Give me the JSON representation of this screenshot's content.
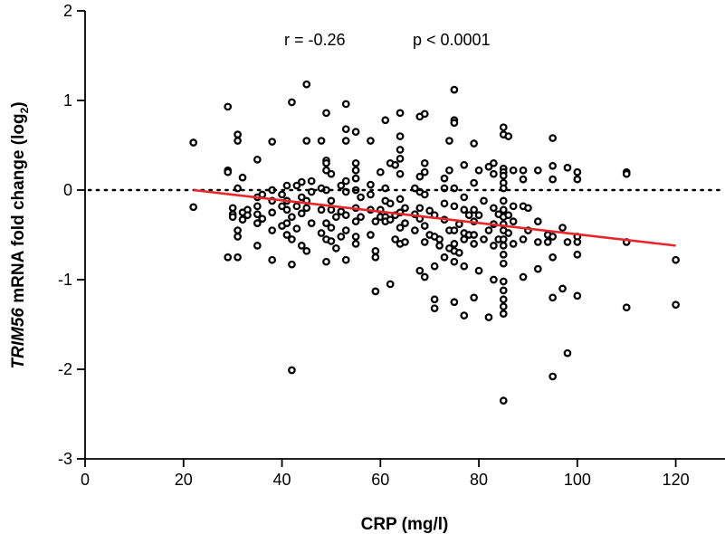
{
  "chart_data": {
    "type": "scatter",
    "title": "",
    "xlabel": "CRP (mg/l)",
    "ylabel_italic": "TRIM56",
    "ylabel_rest": " mRNA fold change (log",
    "ylabel_sub": "2",
    "ylabel_close": ")",
    "xlim": [
      0,
      130
    ],
    "ylim": [
      -3,
      2
    ],
    "xticks": [
      0,
      20,
      40,
      60,
      80,
      100,
      120
    ],
    "yticks": [
      -3,
      -2,
      -1,
      0,
      1,
      2
    ],
    "annotations": {
      "r": "r = -0.26",
      "p": "p < 0.0001"
    },
    "reference_line": {
      "y": 0,
      "style": "dotted"
    },
    "regression": {
      "x": [
        22,
        120
      ],
      "y": [
        0.0,
        -0.62
      ],
      "color": "#e8262a"
    },
    "points": [
      [
        22,
        0.53
      ],
      [
        22,
        -0.19
      ],
      [
        29,
        0.93
      ],
      [
        29,
        0.22
      ],
      [
        29,
        0.2
      ],
      [
        29,
        -0.75
      ],
      [
        30,
        -0.2
      ],
      [
        30,
        -0.27
      ],
      [
        30,
        -0.3
      ],
      [
        31,
        0.62
      ],
      [
        31,
        0.55
      ],
      [
        31,
        0.02
      ],
      [
        31,
        -0.45
      ],
      [
        31,
        -0.52
      ],
      [
        31,
        -0.75
      ],
      [
        32,
        0.14
      ],
      [
        32,
        -0.25
      ],
      [
        32,
        -0.33
      ],
      [
        33,
        -0.22
      ],
      [
        33,
        -0.28
      ],
      [
        35,
        0.34
      ],
      [
        35,
        -0.08
      ],
      [
        35,
        -0.18
      ],
      [
        35,
        -0.27
      ],
      [
        35,
        -0.37
      ],
      [
        35,
        -0.62
      ],
      [
        36,
        -0.05
      ],
      [
        36,
        -0.32
      ],
      [
        38,
        0.54
      ],
      [
        38,
        0.0
      ],
      [
        38,
        -0.12
      ],
      [
        38,
        -0.25
      ],
      [
        38,
        -0.45
      ],
      [
        38,
        -0.78
      ],
      [
        40,
        -0.05
      ],
      [
        40,
        -0.18
      ],
      [
        40,
        -0.4
      ],
      [
        41,
        0.05
      ],
      [
        41,
        -0.12
      ],
      [
        41,
        -0.22
      ],
      [
        41,
        -0.37
      ],
      [
        41,
        -0.5
      ],
      [
        42,
        0.98
      ],
      [
        42,
        -0.3
      ],
      [
        42,
        -0.55
      ],
      [
        42,
        -2.01
      ],
      [
        42,
        -0.83
      ],
      [
        43,
        0.05
      ],
      [
        43,
        -0.18
      ],
      [
        43,
        -0.43
      ],
      [
        44,
        0.09
      ],
      [
        44,
        -0.08
      ],
      [
        44,
        -0.26
      ],
      [
        44,
        -0.62
      ],
      [
        45,
        1.18
      ],
      [
        45,
        0.55
      ],
      [
        45,
        -0.12
      ],
      [
        45,
        -0.2
      ],
      [
        45,
        -0.68
      ],
      [
        46,
        0.1
      ],
      [
        46,
        -0.02
      ],
      [
        46,
        -0.37
      ],
      [
        48,
        0.55
      ],
      [
        48,
        0.02
      ],
      [
        48,
        -0.22
      ],
      [
        48,
        -0.48
      ],
      [
        49,
        0.86
      ],
      [
        49,
        0.33
      ],
      [
        49,
        0.3
      ],
      [
        49,
        0.22
      ],
      [
        49,
        0.0
      ],
      [
        49,
        -0.37
      ],
      [
        49,
        -0.55
      ],
      [
        49,
        -0.8
      ],
      [
        50,
        0.18
      ],
      [
        50,
        -0.12
      ],
      [
        50,
        -0.22
      ],
      [
        50,
        -0.42
      ],
      [
        50,
        -0.57
      ],
      [
        51,
        -0.3
      ],
      [
        51,
        -0.65
      ],
      [
        52,
        0.05
      ],
      [
        52,
        -0.24
      ],
      [
        52,
        -0.52
      ],
      [
        53,
        0.96
      ],
      [
        53,
        0.68
      ],
      [
        53,
        0.55
      ],
      [
        53,
        0.1
      ],
      [
        53,
        -0.02
      ],
      [
        53,
        -0.28
      ],
      [
        53,
        -0.45
      ],
      [
        53,
        -0.78
      ],
      [
        55,
        0.65
      ],
      [
        55,
        0.3
      ],
      [
        55,
        0.22
      ],
      [
        55,
        0.13
      ],
      [
        55,
        0.0
      ],
      [
        55,
        -0.2
      ],
      [
        55,
        -0.35
      ],
      [
        55,
        -0.52
      ],
      [
        55,
        -0.6
      ],
      [
        56,
        -0.08
      ],
      [
        56,
        -0.3
      ],
      [
        58,
        0.55
      ],
      [
        58,
        0.06
      ],
      [
        58,
        -0.05
      ],
      [
        58,
        -0.22
      ],
      [
        58,
        -0.5
      ],
      [
        59,
        -0.35
      ],
      [
        59,
        -0.68
      ],
      [
        59,
        -0.75
      ],
      [
        59,
        -1.13
      ],
      [
        60,
        0.2
      ],
      [
        60,
        -0.22
      ],
      [
        60,
        -0.3
      ],
      [
        61,
        0.78
      ],
      [
        61,
        0.02
      ],
      [
        61,
        -0.12
      ],
      [
        61,
        -0.3
      ],
      [
        61,
        -0.35
      ],
      [
        62,
        0.3
      ],
      [
        62,
        -0.15
      ],
      [
        62,
        -0.33
      ],
      [
        62,
        -1.05
      ],
      [
        63,
        0.28
      ],
      [
        63,
        -0.28
      ],
      [
        63,
        -0.55
      ],
      [
        64,
        0.86
      ],
      [
        64,
        0.6
      ],
      [
        64,
        0.45
      ],
      [
        64,
        0.35
      ],
      [
        64,
        0.18
      ],
      [
        64,
        -0.1
      ],
      [
        64,
        -0.25
      ],
      [
        64,
        -0.42
      ],
      [
        64,
        -0.6
      ],
      [
        65,
        -0.2
      ],
      [
        65,
        -0.37
      ],
      [
        65,
        -0.58
      ],
      [
        67,
        0.02
      ],
      [
        67,
        -0.27
      ],
      [
        67,
        -0.45
      ],
      [
        68,
        0.82
      ],
      [
        68,
        0.15
      ],
      [
        68,
        -0.02
      ],
      [
        68,
        -0.2
      ],
      [
        68,
        -0.32
      ],
      [
        68,
        -0.9
      ],
      [
        69,
        0.85
      ],
      [
        69,
        0.3
      ],
      [
        69,
        0.2
      ],
      [
        69,
        -0.05
      ],
      [
        69,
        -0.4
      ],
      [
        69,
        -0.58
      ],
      [
        69,
        -0.97
      ],
      [
        70,
        -0.23
      ],
      [
        70,
        -0.5
      ],
      [
        71,
        -0.28
      ],
      [
        71,
        -0.52
      ],
      [
        71,
        -0.85
      ],
      [
        71,
        -1.22
      ],
      [
        71,
        -1.32
      ],
      [
        72,
        -0.55
      ],
      [
        72,
        -0.62
      ],
      [
        73,
        0.13
      ],
      [
        73,
        0.02
      ],
      [
        73,
        -0.15
      ],
      [
        73,
        -0.33
      ],
      [
        73,
        -0.75
      ],
      [
        74,
        0.55
      ],
      [
        74,
        0.22
      ],
      [
        74,
        -0.45
      ],
      [
        74,
        -0.65
      ],
      [
        75,
        1.12
      ],
      [
        75,
        0.78
      ],
      [
        75,
        0.75
      ],
      [
        75,
        0.02
      ],
      [
        75,
        -0.18
      ],
      [
        75,
        -0.45
      ],
      [
        75,
        -0.6
      ],
      [
        75,
        -0.68
      ],
      [
        75,
        -0.8
      ],
      [
        75,
        -1.25
      ],
      [
        76,
        -0.38
      ],
      [
        76,
        -0.7
      ],
      [
        77,
        0.28
      ],
      [
        77,
        -0.08
      ],
      [
        77,
        -0.22
      ],
      [
        77,
        -0.48
      ],
      [
        77,
        -0.55
      ],
      [
        77,
        -0.85
      ],
      [
        77,
        -1.4
      ],
      [
        78,
        -0.28
      ],
      [
        78,
        -0.5
      ],
      [
        79,
        0.52
      ],
      [
        79,
        0.08
      ],
      [
        79,
        -0.22
      ],
      [
        79,
        -0.35
      ],
      [
        79,
        -0.5
      ],
      [
        79,
        -0.6
      ],
      [
        79,
        -1.2
      ],
      [
        80,
        0.22
      ],
      [
        80,
        -0.28
      ],
      [
        80,
        -0.9
      ],
      [
        81,
        -0.12
      ],
      [
        81,
        -0.55
      ],
      [
        82,
        0.26
      ],
      [
        82,
        -0.45
      ],
      [
        82,
        -1.42
      ],
      [
        83,
        0.3
      ],
      [
        83,
        0.18
      ],
      [
        83,
        -0.2
      ],
      [
        83,
        -0.38
      ],
      [
        83,
        -0.62
      ],
      [
        83,
        -1.0
      ],
      [
        84,
        -0.27
      ],
      [
        84,
        -0.55
      ],
      [
        85,
        0.7
      ],
      [
        85,
        0.62
      ],
      [
        85,
        0.24
      ],
      [
        85,
        0.2
      ],
      [
        85,
        0.16
      ],
      [
        85,
        0.08
      ],
      [
        85,
        0.02
      ],
      [
        85,
        -0.12
      ],
      [
        85,
        -0.22
      ],
      [
        85,
        -0.3
      ],
      [
        85,
        -0.38
      ],
      [
        85,
        -0.45
      ],
      [
        85,
        -0.55
      ],
      [
        85,
        -0.62
      ],
      [
        85,
        -0.72
      ],
      [
        85,
        -0.82
      ],
      [
        85,
        -1.02
      ],
      [
        85,
        -1.12
      ],
      [
        85,
        -1.22
      ],
      [
        85,
        -1.3
      ],
      [
        85,
        -1.38
      ],
      [
        85,
        -2.35
      ],
      [
        86,
        0.6
      ],
      [
        86,
        -0.28
      ],
      [
        86,
        -0.48
      ],
      [
        87,
        0.22
      ],
      [
        87,
        -0.18
      ],
      [
        87,
        -0.35
      ],
      [
        87,
        -0.6
      ],
      [
        89,
        0.22
      ],
      [
        89,
        0.12
      ],
      [
        89,
        -0.18
      ],
      [
        89,
        -0.55
      ],
      [
        89,
        -0.97
      ],
      [
        90,
        -0.2
      ],
      [
        90,
        -0.45
      ],
      [
        92,
        0.22
      ],
      [
        92,
        -0.35
      ],
      [
        92,
        -0.58
      ],
      [
        92,
        -0.88
      ],
      [
        94,
        -0.5
      ],
      [
        94,
        -0.58
      ],
      [
        95,
        0.58
      ],
      [
        95,
        0.27
      ],
      [
        95,
        0.12
      ],
      [
        95,
        -0.52
      ],
      [
        95,
        -0.75
      ],
      [
        95,
        -1.2
      ],
      [
        95,
        -2.08
      ],
      [
        97,
        -0.42
      ],
      [
        97,
        -1.1
      ],
      [
        98,
        0.25
      ],
      [
        98,
        -0.58
      ],
      [
        98,
        -1.82
      ],
      [
        100,
        0.2
      ],
      [
        100,
        0.12
      ],
      [
        100,
        -0.52
      ],
      [
        100,
        -0.58
      ],
      [
        100,
        -0.72
      ],
      [
        100,
        -1.18
      ],
      [
        110,
        0.2
      ],
      [
        110,
        0.18
      ],
      [
        110,
        -0.58
      ],
      [
        110,
        -1.31
      ],
      [
        120,
        -0.78
      ],
      [
        120,
        -1.28
      ]
    ]
  }
}
